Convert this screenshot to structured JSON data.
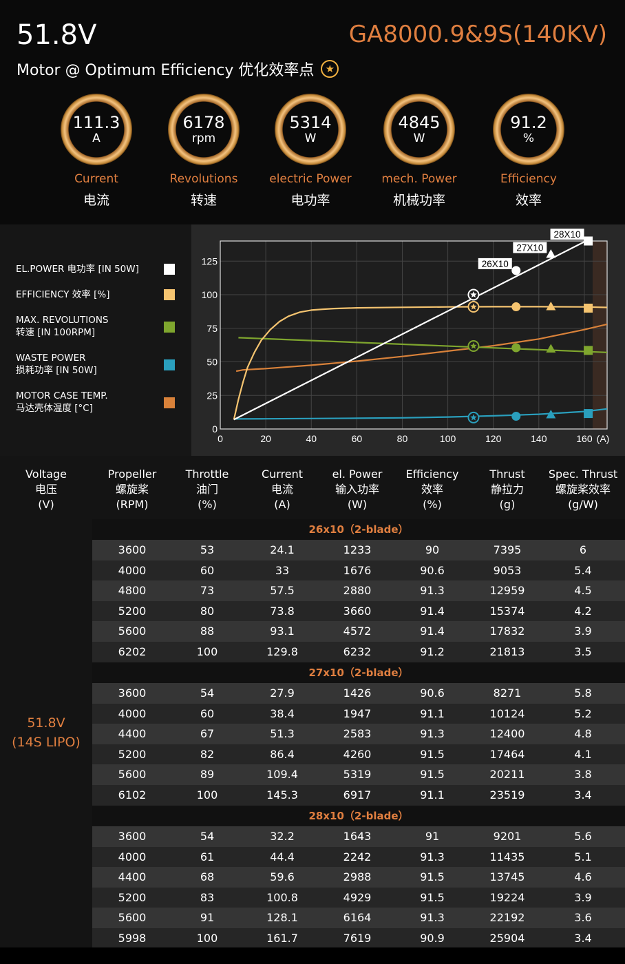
{
  "header": {
    "voltage": "51.8V",
    "model": "GA8000.9&9S(140KV)",
    "subtitle": "Motor @ Optimum Efficiency  优化效率点",
    "star": "★",
    "gauges": [
      {
        "value": "111.3",
        "unit": "A",
        "label_en": "Current",
        "label_cn": "电流"
      },
      {
        "value": "6178",
        "unit": "rpm",
        "label_en": "Revolutions",
        "label_cn": "转速"
      },
      {
        "value": "5314",
        "unit": "W",
        "label_en": "electric Power",
        "label_cn": "电功率"
      },
      {
        "value": "4845",
        "unit": "W",
        "label_en": "mech. Power",
        "label_cn": "机械功率"
      },
      {
        "value": "91.2",
        "unit": "%",
        "label_en": "Efficiency",
        "label_cn": "效率"
      }
    ]
  },
  "legend": [
    {
      "line1": "EL.POWER 电功率 [IN 50W]",
      "line2": "",
      "color": "#ffffff"
    },
    {
      "line1": "EFFICIENCY 效率 [%]",
      "line2": "",
      "color": "#f5c470"
    },
    {
      "line1": "MAX. REVOLUTIONS",
      "line2": "转速 [IN 100RPM]",
      "color": "#7fa62e"
    },
    {
      "line1": "WASTE POWER",
      "line2": "损耗功率 [IN 50W]",
      "color": "#2a9fbd"
    },
    {
      "line1": "MOTOR CASE TEMP.",
      "line2": "马达壳体温度 [°C]",
      "color": "#d9823a"
    }
  ],
  "chart_data": {
    "type": "line",
    "x_unit_label": "(A)",
    "xlim": [
      0,
      170
    ],
    "ylim": [
      0,
      140
    ],
    "x_ticks": [
      0,
      20,
      40,
      60,
      80,
      100,
      120,
      140,
      160
    ],
    "y_ticks": [
      0,
      25,
      50,
      75,
      100,
      125
    ],
    "grid": true,
    "series": [
      {
        "key": "power",
        "color": "#ffffff",
        "x": [
          6,
          170
        ],
        "y": [
          7,
          148
        ]
      },
      {
        "key": "efficiency",
        "color": "#f5c470",
        "x": [
          6,
          8,
          10,
          12,
          15,
          18,
          22,
          26,
          30,
          35,
          40,
          45,
          50,
          60,
          80,
          100,
          120,
          140,
          160,
          170
        ],
        "y": [
          7,
          22,
          35,
          46,
          57,
          66,
          74,
          80,
          84,
          87,
          88.5,
          89.2,
          89.7,
          90.2,
          90.6,
          90.9,
          91.1,
          91.1,
          90.9,
          90.5
        ]
      },
      {
        "key": "revolutions",
        "color": "#7fa62e",
        "x": [
          8,
          170
        ],
        "y": [
          68,
          57
        ]
      },
      {
        "key": "waste",
        "color": "#2a9fbd",
        "x": [
          6,
          20,
          40,
          60,
          80,
          100,
          120,
          140,
          160,
          170
        ],
        "y": [
          7.5,
          7.6,
          7.8,
          8,
          8.3,
          8.9,
          9.8,
          11,
          13,
          15
        ]
      },
      {
        "key": "temperature",
        "color": "#d9823a",
        "x": [
          7,
          10,
          20,
          40,
          60,
          80,
          100,
          120,
          140,
          160,
          170
        ],
        "y": [
          43,
          44,
          45,
          47.5,
          50.5,
          54,
          58,
          62,
          67,
          74,
          78
        ]
      }
    ],
    "markers": [
      {
        "series": "power",
        "x": 111.3,
        "y": 100,
        "shape": "star-circle",
        "color": "#ffffff"
      },
      {
        "series": "power",
        "x": 130,
        "y": 118,
        "shape": "circle",
        "color": "#ffffff",
        "label": "26X10"
      },
      {
        "series": "power",
        "x": 145.3,
        "y": 130,
        "shape": "triangle",
        "color": "#ffffff",
        "label": "27X10"
      },
      {
        "series": "power",
        "x": 161.7,
        "y": 140,
        "shape": "square",
        "color": "#ffffff",
        "label": "28X10"
      },
      {
        "series": "efficiency",
        "x": 111.3,
        "y": 91,
        "shape": "star-circle",
        "color": "#f5c470"
      },
      {
        "series": "efficiency",
        "x": 130,
        "y": 91,
        "shape": "circle",
        "color": "#f5c470"
      },
      {
        "series": "efficiency",
        "x": 145.3,
        "y": 91,
        "shape": "triangle",
        "color": "#f5c470"
      },
      {
        "series": "efficiency",
        "x": 161.7,
        "y": 90,
        "shape": "square",
        "color": "#f5c470"
      },
      {
        "series": "revolutions",
        "x": 111.3,
        "y": 61.8,
        "shape": "star-circle",
        "color": "#7fa62e"
      },
      {
        "series": "revolutions",
        "x": 130,
        "y": 60.5,
        "shape": "circle",
        "color": "#7fa62e"
      },
      {
        "series": "revolutions",
        "x": 145.3,
        "y": 59.5,
        "shape": "triangle",
        "color": "#7fa62e"
      },
      {
        "series": "revolutions",
        "x": 161.7,
        "y": 58.5,
        "shape": "square",
        "color": "#7fa62e"
      },
      {
        "series": "waste",
        "x": 111.3,
        "y": 8.5,
        "shape": "star-circle",
        "color": "#2a9fbd"
      },
      {
        "series": "waste",
        "x": 130,
        "y": 9.5,
        "shape": "circle",
        "color": "#2a9fbd"
      },
      {
        "series": "waste",
        "x": 145.3,
        "y": 10.5,
        "shape": "triangle",
        "color": "#2a9fbd"
      },
      {
        "series": "waste",
        "x": 161.7,
        "y": 11.5,
        "shape": "square",
        "color": "#2a9fbd"
      }
    ]
  },
  "table": {
    "headers": [
      [
        "Voltage",
        "电压",
        "(V)"
      ],
      [
        "Propeller",
        "螺旋桨",
        "(RPM)"
      ],
      [
        "Throttle",
        "油门",
        "(%)"
      ],
      [
        "Current",
        "电流",
        "(A)"
      ],
      [
        "el. Power",
        "输入功率",
        "(W)"
      ],
      [
        "Efficiency",
        "效率",
        "(%)"
      ],
      [
        "Thrust",
        "静拉力",
        "(g)"
      ],
      [
        "Spec. Thrust",
        "螺旋桨效率",
        "(g/W)"
      ]
    ],
    "voltage_line1": "51.8V",
    "voltage_line2": "(14S LIPO)",
    "groups": [
      {
        "title": "26x10（2-blade）",
        "rows": [
          [
            "3600",
            "53",
            "24.1",
            "1233",
            "90",
            "7395",
            "6"
          ],
          [
            "4000",
            "60",
            "33",
            "1676",
            "90.6",
            "9053",
            "5.4"
          ],
          [
            "4800",
            "73",
            "57.5",
            "2880",
            "91.3",
            "12959",
            "4.5"
          ],
          [
            "5200",
            "80",
            "73.8",
            "3660",
            "91.4",
            "15374",
            "4.2"
          ],
          [
            "5600",
            "88",
            "93.1",
            "4572",
            "91.4",
            "17832",
            "3.9"
          ],
          [
            "6202",
            "100",
            "129.8",
            "6232",
            "91.2",
            "21813",
            "3.5"
          ]
        ]
      },
      {
        "title": "27x10（2-blade）",
        "rows": [
          [
            "3600",
            "54",
            "27.9",
            "1426",
            "90.6",
            "8271",
            "5.8"
          ],
          [
            "4000",
            "60",
            "38.4",
            "1947",
            "91.1",
            "10124",
            "5.2"
          ],
          [
            "4400",
            "67",
            "51.3",
            "2583",
            "91.3",
            "12400",
            "4.8"
          ],
          [
            "5200",
            "82",
            "86.4",
            "4260",
            "91.5",
            "17464",
            "4.1"
          ],
          [
            "5600",
            "89",
            "109.4",
            "5319",
            "91.5",
            "20211",
            "3.8"
          ],
          [
            "6102",
            "100",
            "145.3",
            "6917",
            "91.1",
            "23519",
            "3.4"
          ]
        ]
      },
      {
        "title": "28x10（2-blade）",
        "rows": [
          [
            "3600",
            "54",
            "32.2",
            "1643",
            "91",
            "9201",
            "5.6"
          ],
          [
            "4000",
            "61",
            "44.4",
            "2242",
            "91.3",
            "11435",
            "5.1"
          ],
          [
            "4400",
            "68",
            "59.6",
            "2988",
            "91.5",
            "13745",
            "4.6"
          ],
          [
            "5200",
            "83",
            "100.8",
            "4929",
            "91.5",
            "19224",
            "3.9"
          ],
          [
            "5600",
            "91",
            "128.1",
            "6164",
            "91.3",
            "22192",
            "3.6"
          ],
          [
            "5998",
            "100",
            "161.7",
            "7619",
            "90.9",
            "25904",
            "3.4"
          ]
        ]
      }
    ]
  }
}
